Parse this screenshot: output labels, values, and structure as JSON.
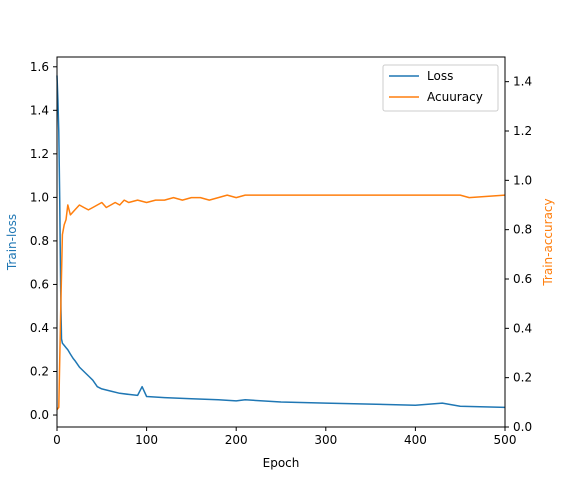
{
  "chart_data": {
    "type": "line",
    "title": "",
    "xlabel": "Epoch",
    "ylabel_left": "Train-loss",
    "ylabel_right": "Train-accuracy",
    "xlim": [
      0,
      500
    ],
    "ylim_left": [
      -0.055,
      1.645
    ],
    "ylim_right": [
      0.0,
      1.5
    ],
    "x_ticks": [
      "0",
      "100",
      "200",
      "300",
      "400",
      "500"
    ],
    "y_ticks_left": [
      "0.0",
      "0.2",
      "0.4",
      "0.6",
      "0.8",
      "1.0",
      "1.2",
      "1.4",
      "1.6"
    ],
    "y_ticks_right": [
      "0.0",
      "0.2",
      "0.4",
      "0.6",
      "0.8",
      "1.0",
      "1.2",
      "1.4"
    ],
    "grid": false,
    "legend_position": "top-right",
    "series": [
      {
        "name": "Loss",
        "axis": "left",
        "color": "#1f77b4",
        "x": [
          0,
          1,
          2,
          3,
          4,
          5,
          6,
          8,
          10,
          12,
          15,
          18,
          20,
          25,
          30,
          35,
          40,
          45,
          50,
          55,
          60,
          70,
          80,
          90,
          95,
          100,
          120,
          150,
          180,
          200,
          210,
          250,
          300,
          350,
          400,
          430,
          450,
          500
        ],
        "y": [
          1.56,
          1.45,
          1.3,
          1.0,
          0.6,
          0.35,
          0.33,
          0.32,
          0.31,
          0.3,
          0.28,
          0.26,
          0.25,
          0.22,
          0.2,
          0.18,
          0.16,
          0.13,
          0.12,
          0.115,
          0.11,
          0.1,
          0.095,
          0.09,
          0.13,
          0.085,
          0.08,
          0.075,
          0.07,
          0.065,
          0.07,
          0.06,
          0.055,
          0.05,
          0.045,
          0.055,
          0.04,
          0.035
        ]
      },
      {
        "name": "Acuuracy",
        "axis": "right",
        "color": "#ff7f0e",
        "x": [
          0,
          2,
          4,
          6,
          8,
          10,
          12,
          15,
          20,
          25,
          30,
          35,
          40,
          45,
          50,
          55,
          60,
          65,
          70,
          75,
          80,
          90,
          100,
          110,
          120,
          130,
          140,
          150,
          160,
          170,
          180,
          190,
          200,
          210,
          220,
          250,
          300,
          350,
          400,
          450,
          460,
          500
        ],
        "y": [
          0.07,
          0.08,
          0.45,
          0.78,
          0.82,
          0.84,
          0.9,
          0.86,
          0.88,
          0.9,
          0.89,
          0.88,
          0.89,
          0.9,
          0.91,
          0.89,
          0.9,
          0.91,
          0.9,
          0.92,
          0.91,
          0.92,
          0.91,
          0.92,
          0.92,
          0.93,
          0.92,
          0.93,
          0.93,
          0.92,
          0.93,
          0.94,
          0.93,
          0.94,
          0.94,
          0.94,
          0.94,
          0.94,
          0.94,
          0.94,
          0.93,
          0.94
        ]
      }
    ]
  }
}
